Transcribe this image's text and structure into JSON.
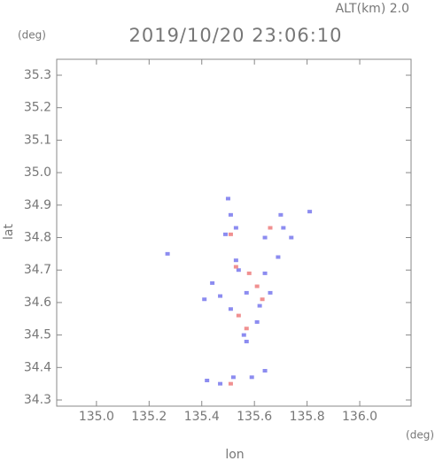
{
  "chart_data": {
    "type": "scatter",
    "title": "2019/10/20 23:06:10",
    "subtitle": "ALT(km) 2.0",
    "y_unit": "(deg)",
    "x_unit": "(deg)",
    "xlabel": "lon",
    "ylabel": "lat",
    "xlim": [
      134.849,
      136.195
    ],
    "ylim": [
      34.281,
      35.349
    ],
    "xticks": [
      {
        "value": 135,
        "label": "135.0"
      },
      135.2,
      135.4,
      135.6,
      135.8,
      {
        "value": 136,
        "label": "136.0"
      }
    ],
    "yticks": [
      34.3,
      34.4,
      34.5,
      34.6,
      34.7,
      34.8,
      34.9,
      {
        "value": 35,
        "label": "35.0"
      },
      35.1,
      35.2,
      35.3
    ],
    "series": [
      {
        "color": "#8c8cf0",
        "x": [
          135.5,
          135.51,
          135.53,
          135.49,
          135.64,
          135.71,
          135.74,
          135.7,
          135.81,
          135.69,
          135.44,
          135.64,
          135.47,
          135.54,
          135.57,
          135.62,
          135.61,
          135.56,
          135.57,
          135.53,
          135.51,
          135.42,
          135.47,
          135.52,
          135.59,
          135.64,
          135.41,
          135.27,
          135.66
        ],
        "values": [
          34.92,
          34.87,
          34.83,
          34.81,
          34.8,
          34.83,
          34.8,
          34.87,
          34.88,
          34.74,
          34.66,
          34.69,
          34.62,
          34.7,
          34.63,
          34.59,
          34.54,
          34.5,
          34.48,
          34.73,
          34.58,
          34.36,
          34.35,
          34.37,
          34.37,
          34.39,
          34.61,
          34.75,
          34.63
        ]
      },
      {
        "color": "#f09090",
        "x": [
          135.51,
          135.66,
          135.53,
          135.58,
          135.63,
          135.54,
          135.51,
          135.61,
          135.57
        ],
        "values": [
          34.81,
          34.83,
          34.71,
          34.69,
          34.61,
          34.56,
          34.35,
          34.65,
          34.52
        ]
      }
    ]
  }
}
